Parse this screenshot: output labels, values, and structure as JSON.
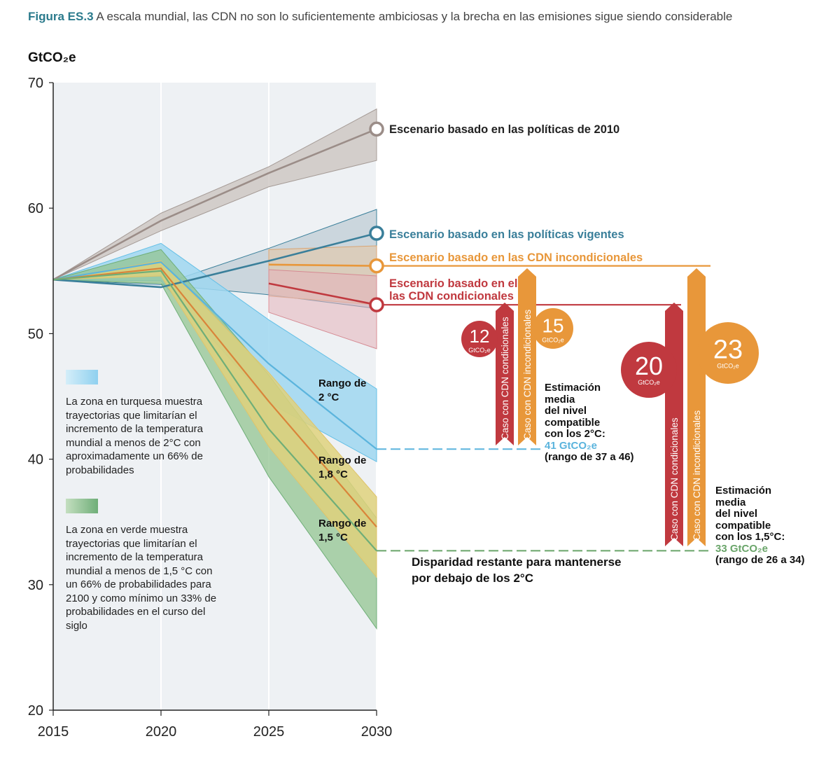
{
  "title": {
    "label": "Figura ES.3",
    "text": "A escala mundial, las CDN no son lo suficientemente ambiciosas y la brecha en las emisiones sigue siendo considerable"
  },
  "colors": {
    "gray": "#9b8d88",
    "blue_line": "#3a7f9a",
    "orange": "#e8973a",
    "red": "#c0393f",
    "turquoise": "#63bfe6",
    "green": "#6fae78",
    "yellow": "#f0d77d",
    "plot_bg": "#eef1f4"
  },
  "chart_data": {
    "type": "line",
    "ylabel": "GtCO₂e",
    "ylim": [
      20,
      70
    ],
    "yticks": [
      "20",
      "30",
      "40",
      "50",
      "60",
      "70"
    ],
    "x": [
      2015,
      2020,
      2025,
      2030
    ],
    "xticks": [
      "2015",
      "2020",
      "2025",
      "2030"
    ],
    "series": [
      {
        "name": "Escenario basado en las políticas de 2010",
        "color": "#9b8d88",
        "x": [
          2015,
          2020,
          2025,
          2030
        ],
        "values": [
          54.3,
          59.0,
          62.8,
          66.3
        ],
        "band_low": [
          54.3,
          58.2,
          61.7,
          63.8
        ],
        "band_high": [
          54.3,
          59.6,
          63.3,
          67.9
        ]
      },
      {
        "name": "Escenario basado en las políticas vigentes",
        "color": "#3a7f9a",
        "x": [
          2015,
          2020,
          2025,
          2030
        ],
        "values": [
          54.3,
          53.7,
          55.8,
          58.0
        ],
        "band_low": [
          54.3,
          53.9,
          53.1,
          52.0
        ],
        "band_high": [
          54.3,
          53.9,
          56.8,
          59.9
        ]
      },
      {
        "name": "Escenario basado en las CDN incondicionales",
        "color": "#e8973a",
        "x": [
          2025,
          2030
        ],
        "values": [
          55.5,
          55.4
        ],
        "band_low": [
          53.0,
          52.3
        ],
        "band_high": [
          56.7,
          57.0
        ]
      },
      {
        "name": "Escenario basado en las CDN condicionales",
        "color": "#c0393f",
        "x": [
          2025,
          2030
        ],
        "values": [
          54.0,
          52.3
        ],
        "band_low": [
          51.7,
          48.8
        ],
        "band_high": [
          55.1,
          54.6
        ]
      },
      {
        "name": "Rango de 2 °C",
        "color": "#63bfe6",
        "x": [
          2015,
          2020,
          2025,
          2030
        ],
        "values": [
          54.3,
          55.7,
          47.6,
          40.8
        ],
        "band_low": [
          54.3,
          54.2,
          44.5,
          39.8
        ],
        "band_high": [
          54.3,
          57.2,
          51.1,
          45.6
        ]
      },
      {
        "name": "Rango de 1,8 °C",
        "color": "#d6913f",
        "x": [
          2015,
          2020,
          2025,
          2030
        ],
        "values": [
          54.3,
          55.2,
          44.6,
          34.6
        ],
        "band_low": [
          54.3,
          54.6,
          41.0,
          30.6
        ],
        "band_high": [
          54.3,
          55.8,
          46.9,
          37.0
        ]
      },
      {
        "name": "Rango de 1,5 °C",
        "color": "#6fae78",
        "x": [
          2015,
          2020,
          2025,
          2030
        ],
        "values": [
          54.3,
          55.0,
          42.4,
          32.7
        ],
        "band_low": [
          54.3,
          54.0,
          38.6,
          26.5
        ],
        "band_high": [
          54.3,
          56.7,
          46.7,
          35.3
        ]
      }
    ],
    "gaps": [
      {
        "label": "Caso con CDN condicionales",
        "target": "2 °C",
        "value": 12,
        "unit": "GtCO₂e"
      },
      {
        "label": "Caso con CDN incondicionales",
        "target": "2 °C",
        "value": 15,
        "unit": "GtCO₂e"
      },
      {
        "label": "Caso con CDN condicionales",
        "target": "1,5 °C",
        "value": 20,
        "unit": "GtCO₂e"
      },
      {
        "label": "Caso con CDN incondicionales",
        "target": "1,5 °C",
        "value": 23,
        "unit": "GtCO₂e"
      }
    ],
    "reference_levels": [
      {
        "name": "41 GtCO₂e",
        "value": 41,
        "range": [
          37,
          46
        ],
        "color": "#5bb4dd"
      },
      {
        "name": "33 GtCO₂e",
        "value": 33,
        "range": [
          26,
          34
        ],
        "color": "#6aa56a"
      }
    ]
  },
  "labels": {
    "range_2c": [
      "Rango de",
      "2 °C"
    ],
    "range_18c": [
      "Rango de",
      "1,8 °C"
    ],
    "range_15c": [
      "Rango de",
      "1,5 °C"
    ],
    "series_2010": "Escenario basado en las políticas de 2010",
    "series_current": "Escenario basado en las políticas vigentes",
    "series_uncond": "Escenario basado en las CDN incondicionales",
    "series_cond_1": "Escenario basado en el",
    "series_cond_2": "las CDN condicionales",
    "bar_cond": "Caso con CDN condicionales",
    "bar_uncond": "Caso con CDN incondicionales",
    "gap_unit": "GtCO₂e",
    "gap_12": "12",
    "gap_15": "15",
    "gap_20": "20",
    "gap_23": "23",
    "disparity_1": "Disparidad restante para mantenerse",
    "disparity_2": "por debajo de los 2°C"
  },
  "legend": {
    "turquoise_text": "La zona en turquesa muestra trayectorias que limitarían el incremento de la temperatura mundial a menos de 2°C con aproximadamente un 66% de probabilidades",
    "green_text": "La zona en verde muestra trayectorias que limitarían el incremento de la temper­atura mundial a menos de 1,5 °C con un 66% de probabilidades para 2100 y como mínimo un 33% de probabilidades en el curso del siglo"
  },
  "notes": {
    "two_c": {
      "l1": "Estimación",
      "l2": "media",
      "l3": "del nivel",
      "l4": "compatible",
      "l5": "con los 2°C:",
      "value": "41 GtCO₂e",
      "range": "(rango de 37 a 46)"
    },
    "one_five_c": {
      "l1": "Estimación",
      "l2": "media",
      "l3": "del nivel",
      "l4": "compatible",
      "l5": "con los 1,5°C:",
      "value": "33 GtCO₂e",
      "range": "(rango de 26 a 34)"
    }
  }
}
